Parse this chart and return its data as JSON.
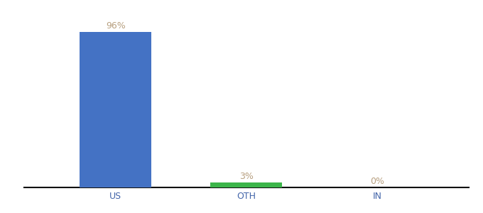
{
  "categories": [
    "US",
    "OTH",
    "IN"
  ],
  "values": [
    96,
    3,
    0
  ],
  "bar_colors": [
    "#4472c4",
    "#3cb54a",
    "#4472c4"
  ],
  "labels": [
    "96%",
    "3%",
    "0%"
  ],
  "label_color": "#b8a080",
  "ylim": [
    0,
    100
  ],
  "background_color": "#ffffff",
  "bar_width": 0.55,
  "label_fontsize": 9,
  "tick_fontsize": 9,
  "axis_line_color": "#111111",
  "tick_color": "#4466aa"
}
